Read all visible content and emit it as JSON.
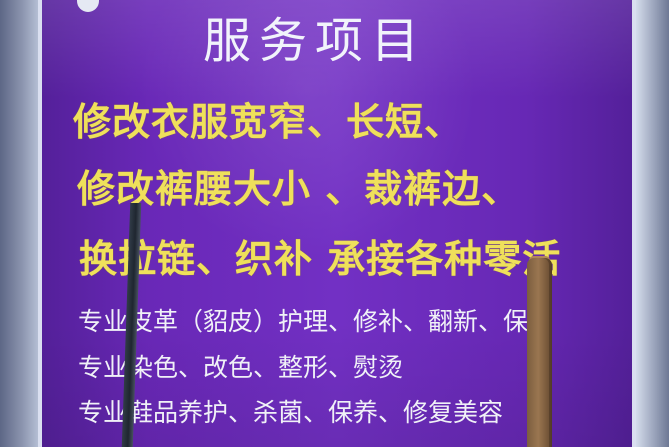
{
  "sign": {
    "title": "服务项目",
    "lines": [
      "修改衣服宽窄、长短、",
      "修改裤腰大小 、裁裤边、",
      "换拉链、织补 承接各种零活",
      "专业皮革（貂皮）护理、修补、翻新、保养",
      "专业染色、改色、整形、熨烫",
      "专业鞋品养护、杀菌、保养、修复美容"
    ]
  },
  "colors": {
    "sign_background": "#6d2dbf",
    "title_text": "#f1f3fb",
    "highlight_text": "#efe05b",
    "body_text": "#f0f1f7"
  }
}
